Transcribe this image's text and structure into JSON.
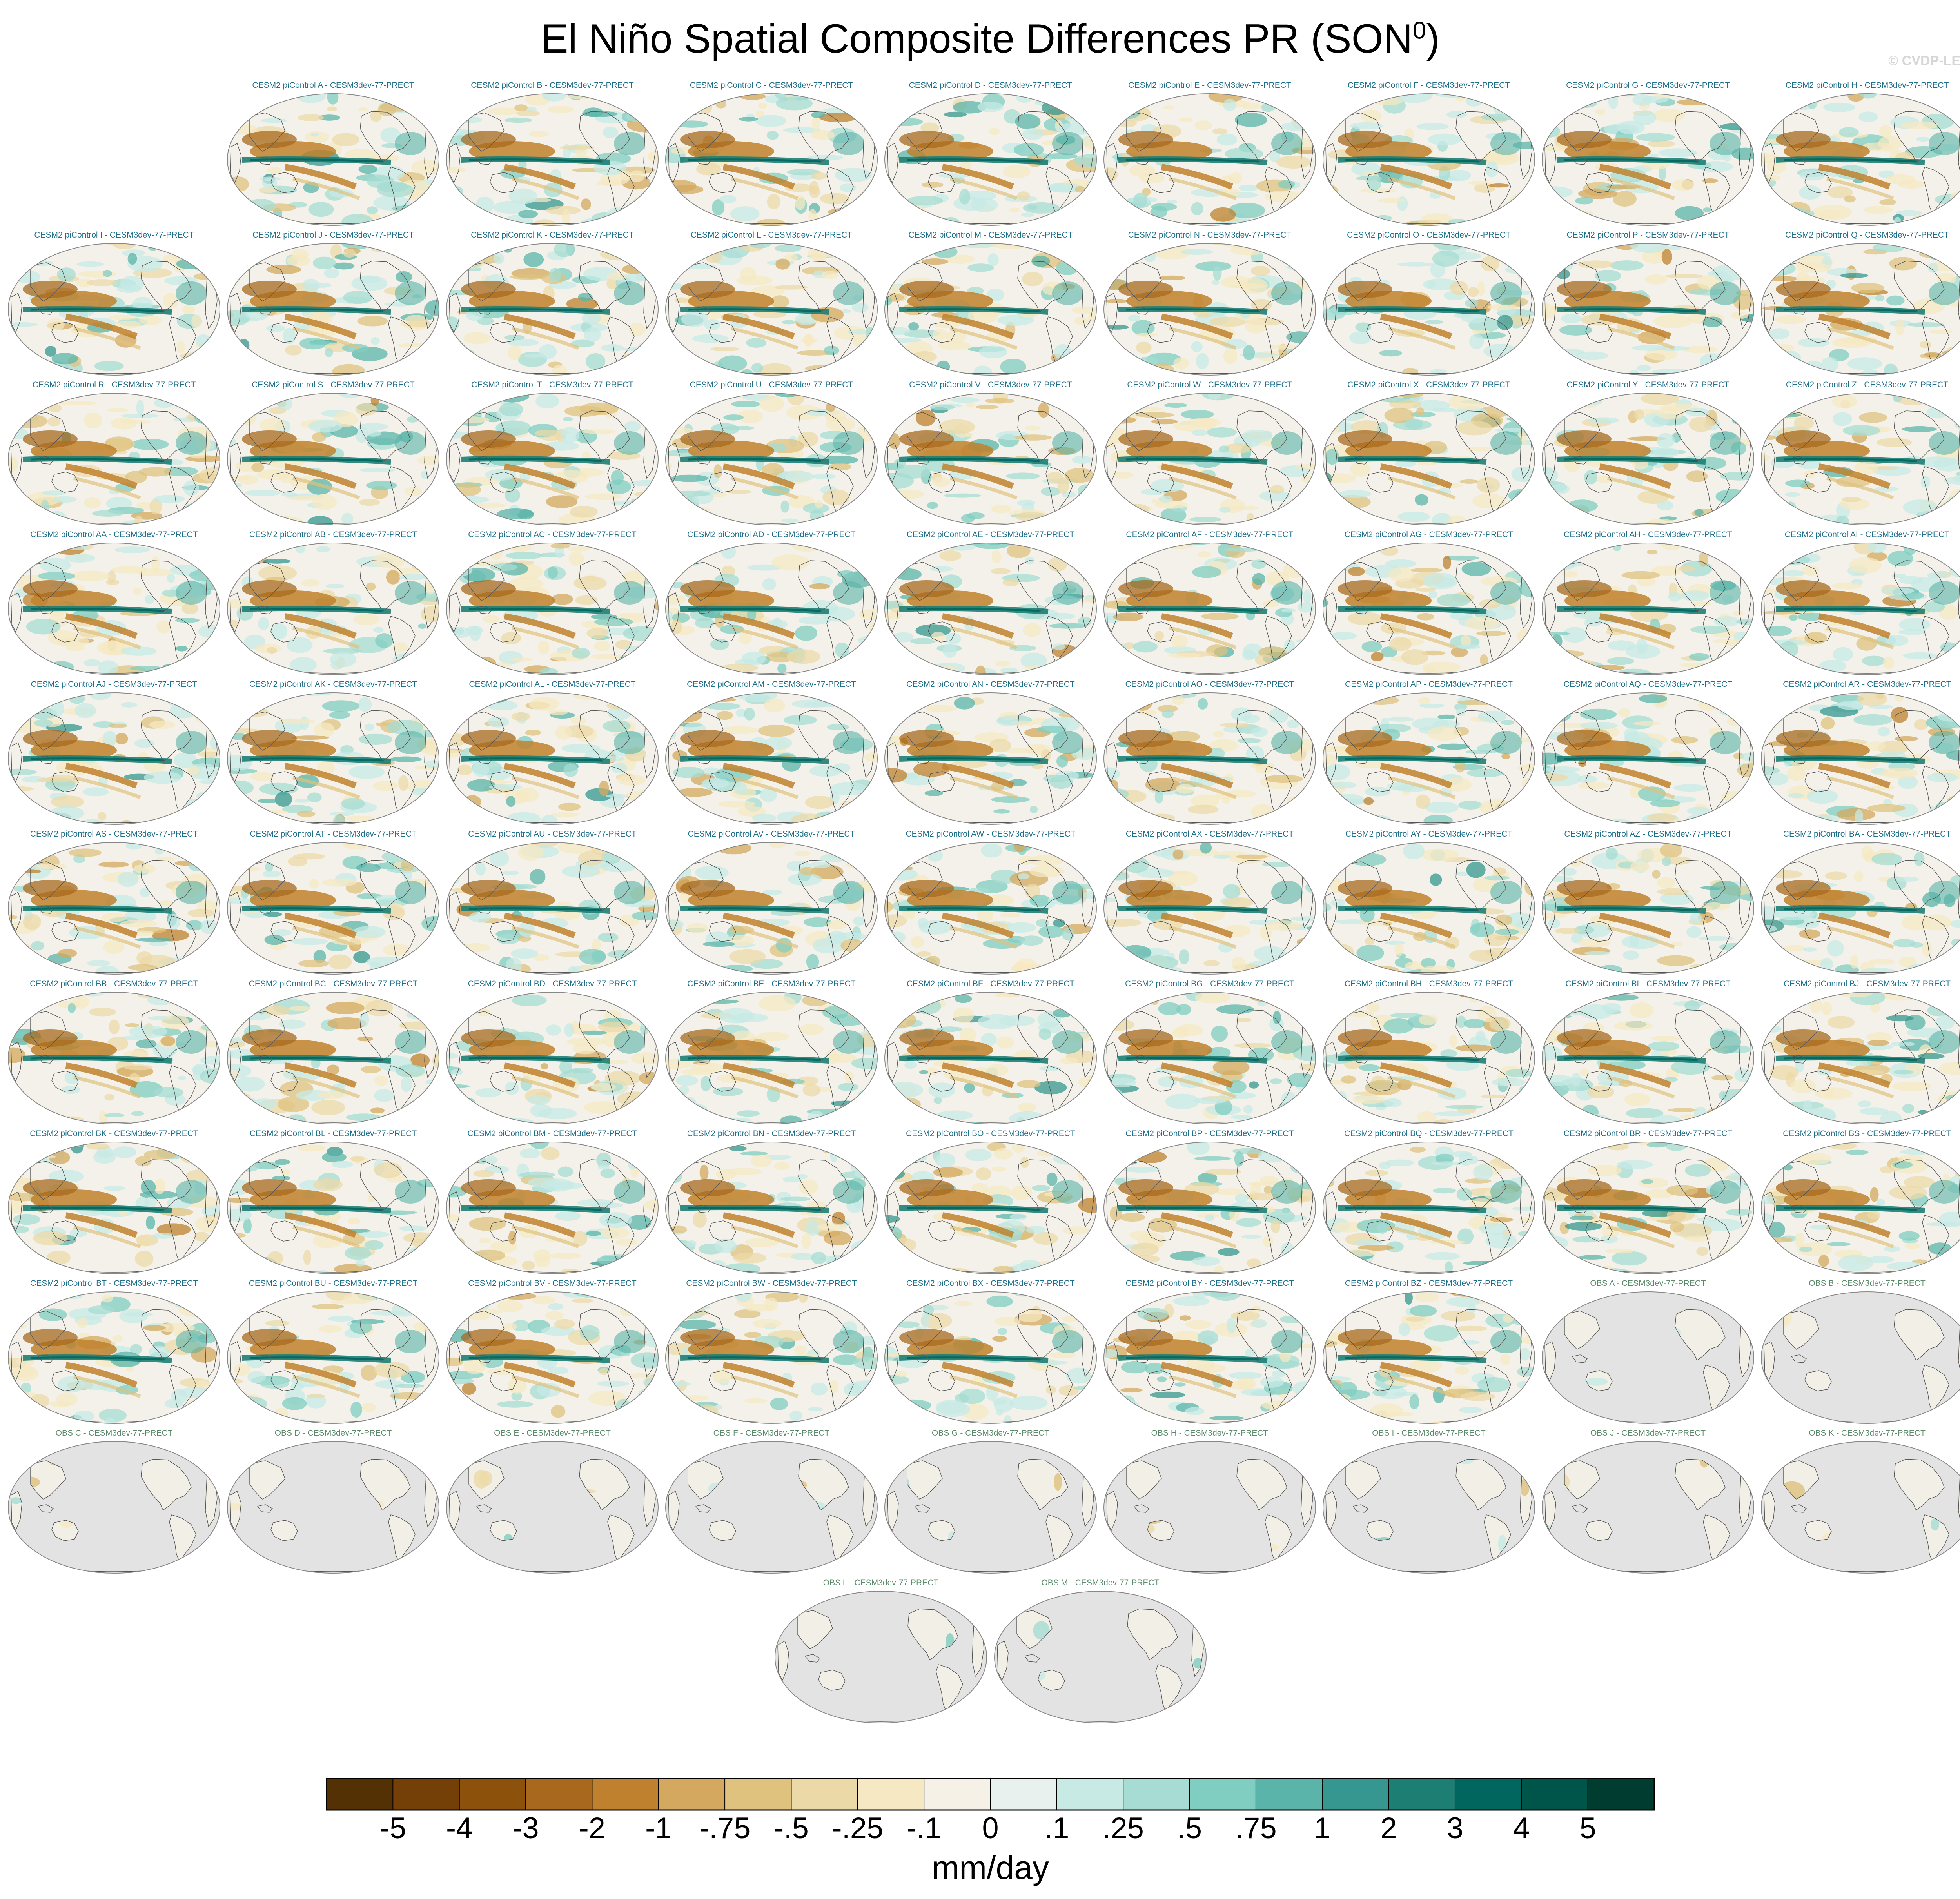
{
  "title_main": "El Niño Spatial Composite Differences PR (SON",
  "title_sup": "0",
  "title_end": ")",
  "watermark": "© CVDP-LE",
  "panels": [
    {
      "title": "CESM2 piControl A - CESM3dev-77-PRECT",
      "kind": "model"
    },
    {
      "title": "CESM2 piControl B - CESM3dev-77-PRECT",
      "kind": "model"
    },
    {
      "title": "CESM2 piControl C - CESM3dev-77-PRECT",
      "kind": "model"
    },
    {
      "title": "CESM2 piControl D - CESM3dev-77-PRECT",
      "kind": "model"
    },
    {
      "title": "CESM2 piControl E - CESM3dev-77-PRECT",
      "kind": "model"
    },
    {
      "title": "CESM2 piControl F - CESM3dev-77-PRECT",
      "kind": "model"
    },
    {
      "title": "CESM2 piControl G - CESM3dev-77-PRECT",
      "kind": "model"
    },
    {
      "title": "CESM2 piControl H - CESM3dev-77-PRECT",
      "kind": "model"
    },
    {
      "title": "CESM2 piControl I - CESM3dev-77-PRECT",
      "kind": "model"
    },
    {
      "title": "CESM2 piControl J - CESM3dev-77-PRECT",
      "kind": "model"
    },
    {
      "title": "CESM2 piControl K - CESM3dev-77-PRECT",
      "kind": "model"
    },
    {
      "title": "CESM2 piControl L - CESM3dev-77-PRECT",
      "kind": "model"
    },
    {
      "title": "CESM2 piControl M - CESM3dev-77-PRECT",
      "kind": "model"
    },
    {
      "title": "CESM2 piControl N - CESM3dev-77-PRECT",
      "kind": "model"
    },
    {
      "title": "CESM2 piControl O - CESM3dev-77-PRECT",
      "kind": "model"
    },
    {
      "title": "CESM2 piControl P - CESM3dev-77-PRECT",
      "kind": "model"
    },
    {
      "title": "CESM2 piControl Q - CESM3dev-77-PRECT",
      "kind": "model"
    },
    {
      "title": "CESM2 piControl R - CESM3dev-77-PRECT",
      "kind": "model"
    },
    {
      "title": "CESM2 piControl S - CESM3dev-77-PRECT",
      "kind": "model"
    },
    {
      "title": "CESM2 piControl T - CESM3dev-77-PRECT",
      "kind": "model"
    },
    {
      "title": "CESM2 piControl U - CESM3dev-77-PRECT",
      "kind": "model"
    },
    {
      "title": "CESM2 piControl V - CESM3dev-77-PRECT",
      "kind": "model"
    },
    {
      "title": "CESM2 piControl W - CESM3dev-77-PRECT",
      "kind": "model"
    },
    {
      "title": "CESM2 piControl X - CESM3dev-77-PRECT",
      "kind": "model"
    },
    {
      "title": "CESM2 piControl Y - CESM3dev-77-PRECT",
      "kind": "model"
    },
    {
      "title": "CESM2 piControl Z - CESM3dev-77-PRECT",
      "kind": "model"
    },
    {
      "title": "CESM2 piControl AA - CESM3dev-77-PRECT",
      "kind": "model"
    },
    {
      "title": "CESM2 piControl AB - CESM3dev-77-PRECT",
      "kind": "model"
    },
    {
      "title": "CESM2 piControl AC - CESM3dev-77-PRECT",
      "kind": "model"
    },
    {
      "title": "CESM2 piControl AD - CESM3dev-77-PRECT",
      "kind": "model"
    },
    {
      "title": "CESM2 piControl AE - CESM3dev-77-PRECT",
      "kind": "model"
    },
    {
      "title": "CESM2 piControl AF - CESM3dev-77-PRECT",
      "kind": "model"
    },
    {
      "title": "CESM2 piControl AG - CESM3dev-77-PRECT",
      "kind": "model"
    },
    {
      "title": "CESM2 piControl AH - CESM3dev-77-PRECT",
      "kind": "model"
    },
    {
      "title": "CESM2 piControl AI - CESM3dev-77-PRECT",
      "kind": "model"
    },
    {
      "title": "CESM2 piControl AJ - CESM3dev-77-PRECT",
      "kind": "model"
    },
    {
      "title": "CESM2 piControl AK - CESM3dev-77-PRECT",
      "kind": "model"
    },
    {
      "title": "CESM2 piControl AL - CESM3dev-77-PRECT",
      "kind": "model"
    },
    {
      "title": "CESM2 piControl AM - CESM3dev-77-PRECT",
      "kind": "model"
    },
    {
      "title": "CESM2 piControl AN - CESM3dev-77-PRECT",
      "kind": "model"
    },
    {
      "title": "CESM2 piControl AO - CESM3dev-77-PRECT",
      "kind": "model"
    },
    {
      "title": "CESM2 piControl AP - CESM3dev-77-PRECT",
      "kind": "model"
    },
    {
      "title": "CESM2 piControl AQ - CESM3dev-77-PRECT",
      "kind": "model"
    },
    {
      "title": "CESM2 piControl AR - CESM3dev-77-PRECT",
      "kind": "model"
    },
    {
      "title": "CESM2 piControl AS - CESM3dev-77-PRECT",
      "kind": "model"
    },
    {
      "title": "CESM2 piControl AT - CESM3dev-77-PRECT",
      "kind": "model"
    },
    {
      "title": "CESM2 piControl AU - CESM3dev-77-PRECT",
      "kind": "model"
    },
    {
      "title": "CESM2 piControl AV - CESM3dev-77-PRECT",
      "kind": "model"
    },
    {
      "title": "CESM2 piControl AW - CESM3dev-77-PRECT",
      "kind": "model"
    },
    {
      "title": "CESM2 piControl AX - CESM3dev-77-PRECT",
      "kind": "model"
    },
    {
      "title": "CESM2 piControl AY - CESM3dev-77-PRECT",
      "kind": "model"
    },
    {
      "title": "CESM2 piControl AZ - CESM3dev-77-PRECT",
      "kind": "model"
    },
    {
      "title": "CESM2 piControl BA - CESM3dev-77-PRECT",
      "kind": "model"
    },
    {
      "title": "CESM2 piControl BB - CESM3dev-77-PRECT",
      "kind": "model"
    },
    {
      "title": "CESM2 piControl BC - CESM3dev-77-PRECT",
      "kind": "model"
    },
    {
      "title": "CESM2 piControl BD - CESM3dev-77-PRECT",
      "kind": "model"
    },
    {
      "title": "CESM2 piControl BE - CESM3dev-77-PRECT",
      "kind": "model"
    },
    {
      "title": "CESM2 piControl BF - CESM3dev-77-PRECT",
      "kind": "model"
    },
    {
      "title": "CESM2 piControl BG - CESM3dev-77-PRECT",
      "kind": "model"
    },
    {
      "title": "CESM2 piControl BH - CESM3dev-77-PRECT",
      "kind": "model"
    },
    {
      "title": "CESM2 piControl BI - CESM3dev-77-PRECT",
      "kind": "model"
    },
    {
      "title": "CESM2 piControl BJ - CESM3dev-77-PRECT",
      "kind": "model"
    },
    {
      "title": "CESM2 piControl BK - CESM3dev-77-PRECT",
      "kind": "model"
    },
    {
      "title": "CESM2 piControl BL - CESM3dev-77-PRECT",
      "kind": "model"
    },
    {
      "title": "CESM2 piControl BM - CESM3dev-77-PRECT",
      "kind": "model"
    },
    {
      "title": "CESM2 piControl BN - CESM3dev-77-PRECT",
      "kind": "model"
    },
    {
      "title": "CESM2 piControl BO - CESM3dev-77-PRECT",
      "kind": "model"
    },
    {
      "title": "CESM2 piControl BP - CESM3dev-77-PRECT",
      "kind": "model"
    },
    {
      "title": "CESM2 piControl BQ - CESM3dev-77-PRECT",
      "kind": "model"
    },
    {
      "title": "CESM2 piControl BR - CESM3dev-77-PRECT",
      "kind": "model"
    },
    {
      "title": "CESM2 piControl BS - CESM3dev-77-PRECT",
      "kind": "model"
    },
    {
      "title": "CESM2 piControl BT - CESM3dev-77-PRECT",
      "kind": "model"
    },
    {
      "title": "CESM2 piControl BU - CESM3dev-77-PRECT",
      "kind": "model"
    },
    {
      "title": "CESM2 piControl BV - CESM3dev-77-PRECT",
      "kind": "model"
    },
    {
      "title": "CESM2 piControl BW - CESM3dev-77-PRECT",
      "kind": "model"
    },
    {
      "title": "CESM2 piControl BX - CESM3dev-77-PRECT",
      "kind": "model"
    },
    {
      "title": "CESM2 piControl BY - CESM3dev-77-PRECT",
      "kind": "model"
    },
    {
      "title": "CESM2 piControl BZ - CESM3dev-77-PRECT",
      "kind": "model"
    },
    {
      "title": "OBS A - CESM3dev-77-PRECT",
      "kind": "obs"
    },
    {
      "title": "OBS B - CESM3dev-77-PRECT",
      "kind": "obs"
    },
    {
      "title": "OBS C - CESM3dev-77-PRECT",
      "kind": "obs"
    },
    {
      "title": "OBS D - CESM3dev-77-PRECT",
      "kind": "obs"
    },
    {
      "title": "OBS E - CESM3dev-77-PRECT",
      "kind": "obs"
    },
    {
      "title": "OBS F - CESM3dev-77-PRECT",
      "kind": "obs"
    },
    {
      "title": "OBS G - CESM3dev-77-PRECT",
      "kind": "obs"
    },
    {
      "title": "OBS H - CESM3dev-77-PRECT",
      "kind": "obs"
    },
    {
      "title": "OBS I - CESM3dev-77-PRECT",
      "kind": "obs"
    },
    {
      "title": "OBS J - CESM3dev-77-PRECT",
      "kind": "obs"
    },
    {
      "title": "OBS K - CESM3dev-77-PRECT",
      "kind": "obs"
    },
    {
      "title": "OBS L - CESM3dev-77-PRECT",
      "kind": "obs"
    },
    {
      "title": "OBS M - CESM3dev-77-PRECT",
      "kind": "obs"
    }
  ],
  "colorbar": {
    "colors": [
      "#543005",
      "#744008",
      "#8c510a",
      "#a8691e",
      "#bf812d",
      "#d4a85e",
      "#dfc27d",
      "#ecd9a8",
      "#f6e8c3",
      "#f5f1e6",
      "#e9f1ee",
      "#c7eae5",
      "#a6dcd3",
      "#80cdc1",
      "#5ab4a9",
      "#35978f",
      "#1d7e74",
      "#01665e",
      "#00554b",
      "#003c30"
    ],
    "labels": [
      "-5",
      "-4",
      "-3",
      "-2",
      "-1",
      "-.75",
      "-.5",
      "-.25",
      "-.1",
      "0",
      ".1",
      ".25",
      ".5",
      ".75",
      "1",
      "2",
      "3",
      "4",
      "5"
    ],
    "units": "mm/day"
  },
  "map_colors": {
    "ocean_land_null": "#e3e3e3",
    "coast": "#555555",
    "outline": "#888888"
  }
}
